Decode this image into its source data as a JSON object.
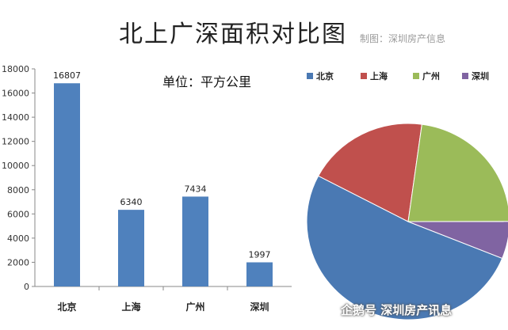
{
  "title": "北上广深面积对比图",
  "credit": "制图：深圳房产信息",
  "watermark": "企鹅号 深圳房产讯息",
  "chart_data": [
    {
      "type": "bar",
      "categories": [
        "北京",
        "上海",
        "广州",
        "深圳"
      ],
      "values": [
        16807,
        6340,
        7434,
        1997
      ],
      "data_labels": [
        "16807",
        "6340",
        "7434",
        "1997"
      ],
      "annotation": "单位：平方公里",
      "ylim": [
        0,
        18000
      ],
      "yticks": [
        0,
        2000,
        4000,
        6000,
        8000,
        10000,
        12000,
        14000,
        16000,
        18000
      ],
      "grid": false,
      "colors": {
        "bar": "#4f81bd"
      }
    },
    {
      "type": "pie",
      "labels": [
        "北京",
        "上海",
        "广州",
        "深圳"
      ],
      "values": [
        16807,
        6340,
        7434,
        1997
      ],
      "colors": [
        "#4a79b3",
        "#c0504d",
        "#9bbb59",
        "#8064a2"
      ],
      "legend": "top"
    }
  ]
}
